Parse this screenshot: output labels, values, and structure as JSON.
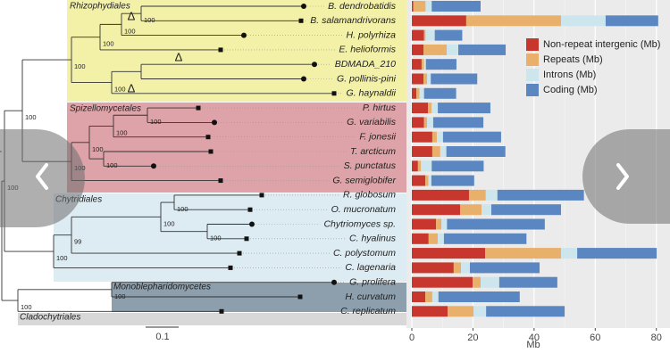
{
  "chart_data": {
    "type": "bar",
    "orientation": "horizontal",
    "stacked": true,
    "categories": [
      "B. dendrobatidis",
      "B. salamandrivorans",
      "H. polyrhiza",
      "E. helioformis",
      "BDMADA_210",
      "G. pollinis-pini",
      "G. haynaldii",
      "P. hirtus",
      "G. variabilis",
      "F. jonesii",
      "T. arcticum",
      "S. punctatus",
      "G. semiglobifer",
      "R. globosum",
      "O. mucronatum",
      "Chytriomyces sp.",
      "C. hyalinus",
      "C. polystomum",
      "C. lagenaria",
      "G. prolifera",
      "H. curvatum",
      "C. replicatum"
    ],
    "series": [
      {
        "name": "Non-repeat intergenic (Mb)",
        "color": "#c8372d",
        "values": [
          0.5,
          17.8,
          4,
          3.8,
          3.2,
          3.8,
          1.5,
          5.3,
          4,
          6.7,
          6.7,
          2,
          4.4,
          18.7,
          15.8,
          7.9,
          5.5,
          24,
          13.7,
          19.9,
          4.4,
          11.7
        ]
      },
      {
        "name": "Repeats (Mb)",
        "color": "#e8b06a",
        "values": [
          4,
          31,
          0.5,
          7.6,
          0.8,
          1.2,
          1,
          1.2,
          1,
          1.5,
          2.6,
          1,
          1,
          5.5,
          7,
          1.8,
          3,
          24.8,
          2.4,
          2.6,
          2.3,
          8.5
        ]
      },
      {
        "name": "Introns (Mb)",
        "color": "#cde6ee",
        "values": [
          2,
          14.6,
          3,
          3.8,
          0.6,
          1.2,
          1.5,
          2,
          2,
          2,
          2,
          3.5,
          1,
          3.8,
          3.2,
          1.8,
          2,
          5.3,
          2.9,
          6.1,
          2,
          4.1
        ]
      },
      {
        "name": "Coding (Mb)",
        "color": "#5a86c2",
        "values": [
          16,
          17.2,
          9,
          15.5,
          10,
          15.2,
          10.5,
          17.2,
          16.4,
          19,
          19.3,
          17,
          14,
          28.3,
          22.8,
          32,
          27,
          26,
          22.8,
          19,
          26.6,
          25.7
        ]
      }
    ],
    "xlim": [
      0,
      83
    ],
    "xticks": [
      0,
      20,
      40,
      60,
      80
    ],
    "xlabel": "Mb",
    "grid": true,
    "legend": "top-right"
  },
  "tree": {
    "clades": [
      {
        "name": "Rhizophydiales",
        "color": "#f3f0a8"
      },
      {
        "name": "Spizellomycetales",
        "color": "#dea3a8"
      },
      {
        "name": "Chytridiales",
        "color": "#ddecf2"
      },
      {
        "name": "Monoblepharidomycetes",
        "color": "#8d9fad"
      },
      {
        "name": "Cladochytriales",
        "color": "#d8d8d8"
      }
    ],
    "support_labels": [
      "100",
      "100",
      "100",
      "100",
      "100",
      "100",
      "100",
      "100",
      "100",
      "100",
      "100",
      "100",
      "100",
      "100",
      "99",
      "100",
      "100",
      "100",
      "100"
    ],
    "delta_labels": [
      "Δ",
      "Δ",
      "Δ"
    ],
    "scale_label": "0.1"
  }
}
